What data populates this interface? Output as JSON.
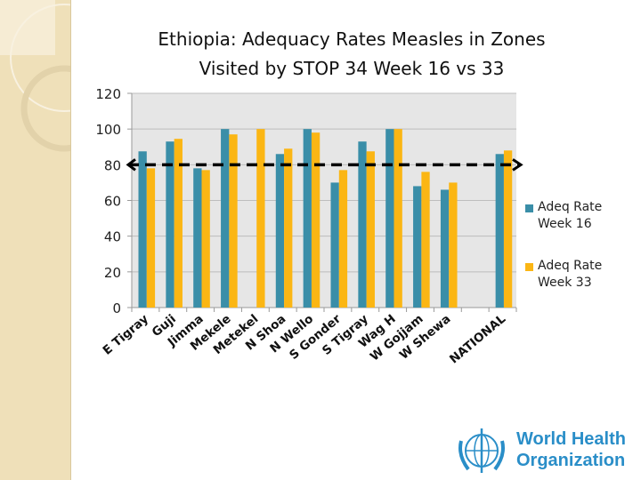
{
  "chart_data": {
    "type": "bar",
    "title_lines": [
      "Ethiopia: Adequacy Rates Measles in Zones",
      "Visited by STOP 34 Week 16 vs 33"
    ],
    "categories": [
      "E Tigray",
      "Guji",
      "Jimma",
      "Mekele",
      "Metekel",
      "N Shoa",
      "N Wello",
      "S Gonder",
      "S Tigray",
      "Wag H",
      "W Gojjam",
      "W Shewa",
      "",
      "NATIONAL"
    ],
    "series": [
      {
        "name": "Adeq Rate Week 16",
        "legend_lines": [
          "Adeq Rate",
          "Week 16"
        ],
        "color": "#3a8ea8",
        "values": [
          87.5,
          93,
          78,
          100,
          0,
          86,
          100,
          70,
          93,
          100,
          68,
          66,
          null,
          86
        ]
      },
      {
        "name": "Adeq Rate Week 33",
        "legend_lines": [
          "Adeq Rate",
          "Week 33"
        ],
        "color": "#fbb614",
        "values": [
          78,
          94.5,
          77,
          97,
          100,
          89,
          98,
          77,
          87.5,
          100,
          76,
          70,
          null,
          88
        ]
      }
    ],
    "yticks": [
      "0",
      "20",
      "40",
      "60",
      "80",
      "100",
      "120"
    ],
    "ylim": [
      0,
      120
    ],
    "reference_line": {
      "value": 80,
      "style": "dashed double arrow"
    },
    "grid": true,
    "legend_position": "right"
  },
  "logo": {
    "text_lines": [
      "World Health",
      "Organization"
    ]
  }
}
